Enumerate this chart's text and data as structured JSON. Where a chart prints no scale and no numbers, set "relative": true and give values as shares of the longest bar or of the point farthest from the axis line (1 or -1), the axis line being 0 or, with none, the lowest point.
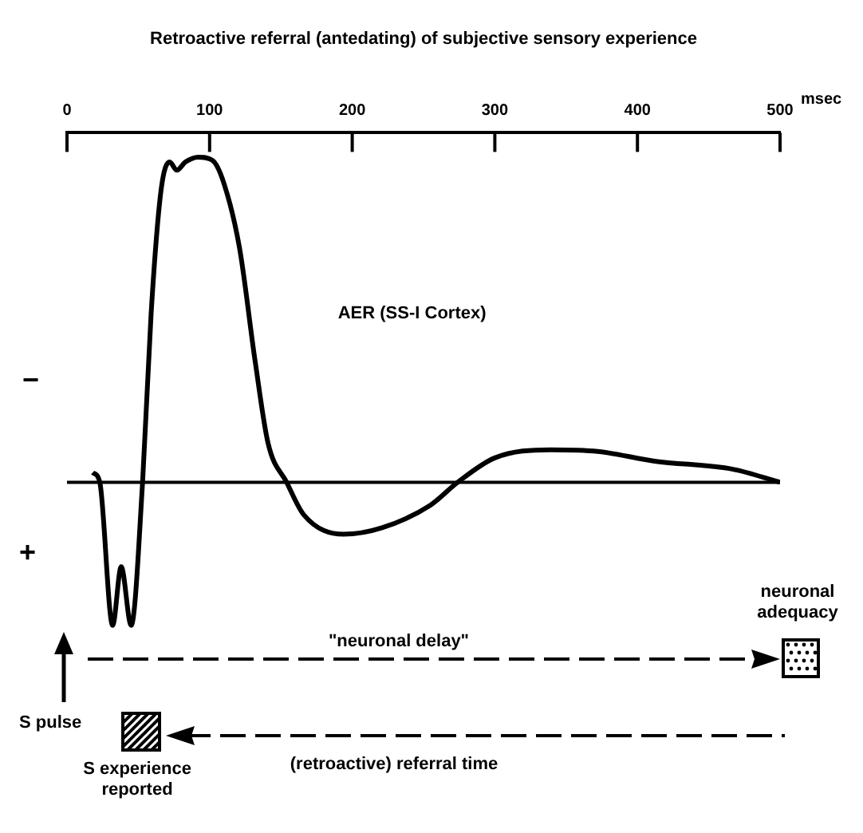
{
  "chart_data": {
    "type": "line",
    "title": "Retroactive referral (antedating) of subjective sensory experience",
    "xlabel": "msec",
    "relative": true,
    "xlim": [
      0,
      500
    ],
    "xticks": [
      0,
      100,
      200,
      300,
      400,
      500
    ],
    "marker": "none",
    "line_style": "solid",
    "series": [
      {
        "name": "AER (SS-I Cortex)",
        "color": "#000000",
        "x": [
          18,
          23,
          32,
          38,
          45,
          53,
          59,
          66,
          72,
          77,
          83,
          92,
          102,
          110,
          121,
          132,
          141,
          154,
          166,
          194,
          221,
          255,
          274,
          300,
          339,
          372,
          412,
          467,
          500
        ],
        "values": [
          0.03,
          0,
          -0.44,
          -0.26,
          -0.44,
          0,
          0.52,
          0.9,
          0.985,
          0.96,
          0.985,
          1,
          0.99,
          0.92,
          0.72,
          0.37,
          0.12,
          0,
          -0.1,
          -0.16,
          -0.14,
          -0.07,
          0,
          0.075,
          0.1,
          0.095,
          0.065,
          0.04,
          0
        ]
      }
    ],
    "annotations": [
      "−",
      "+",
      "\"neuronal delay\"",
      "neuronal adequacy",
      "S pulse",
      "S experience reported",
      "(retroactive) referral time"
    ]
  }
}
